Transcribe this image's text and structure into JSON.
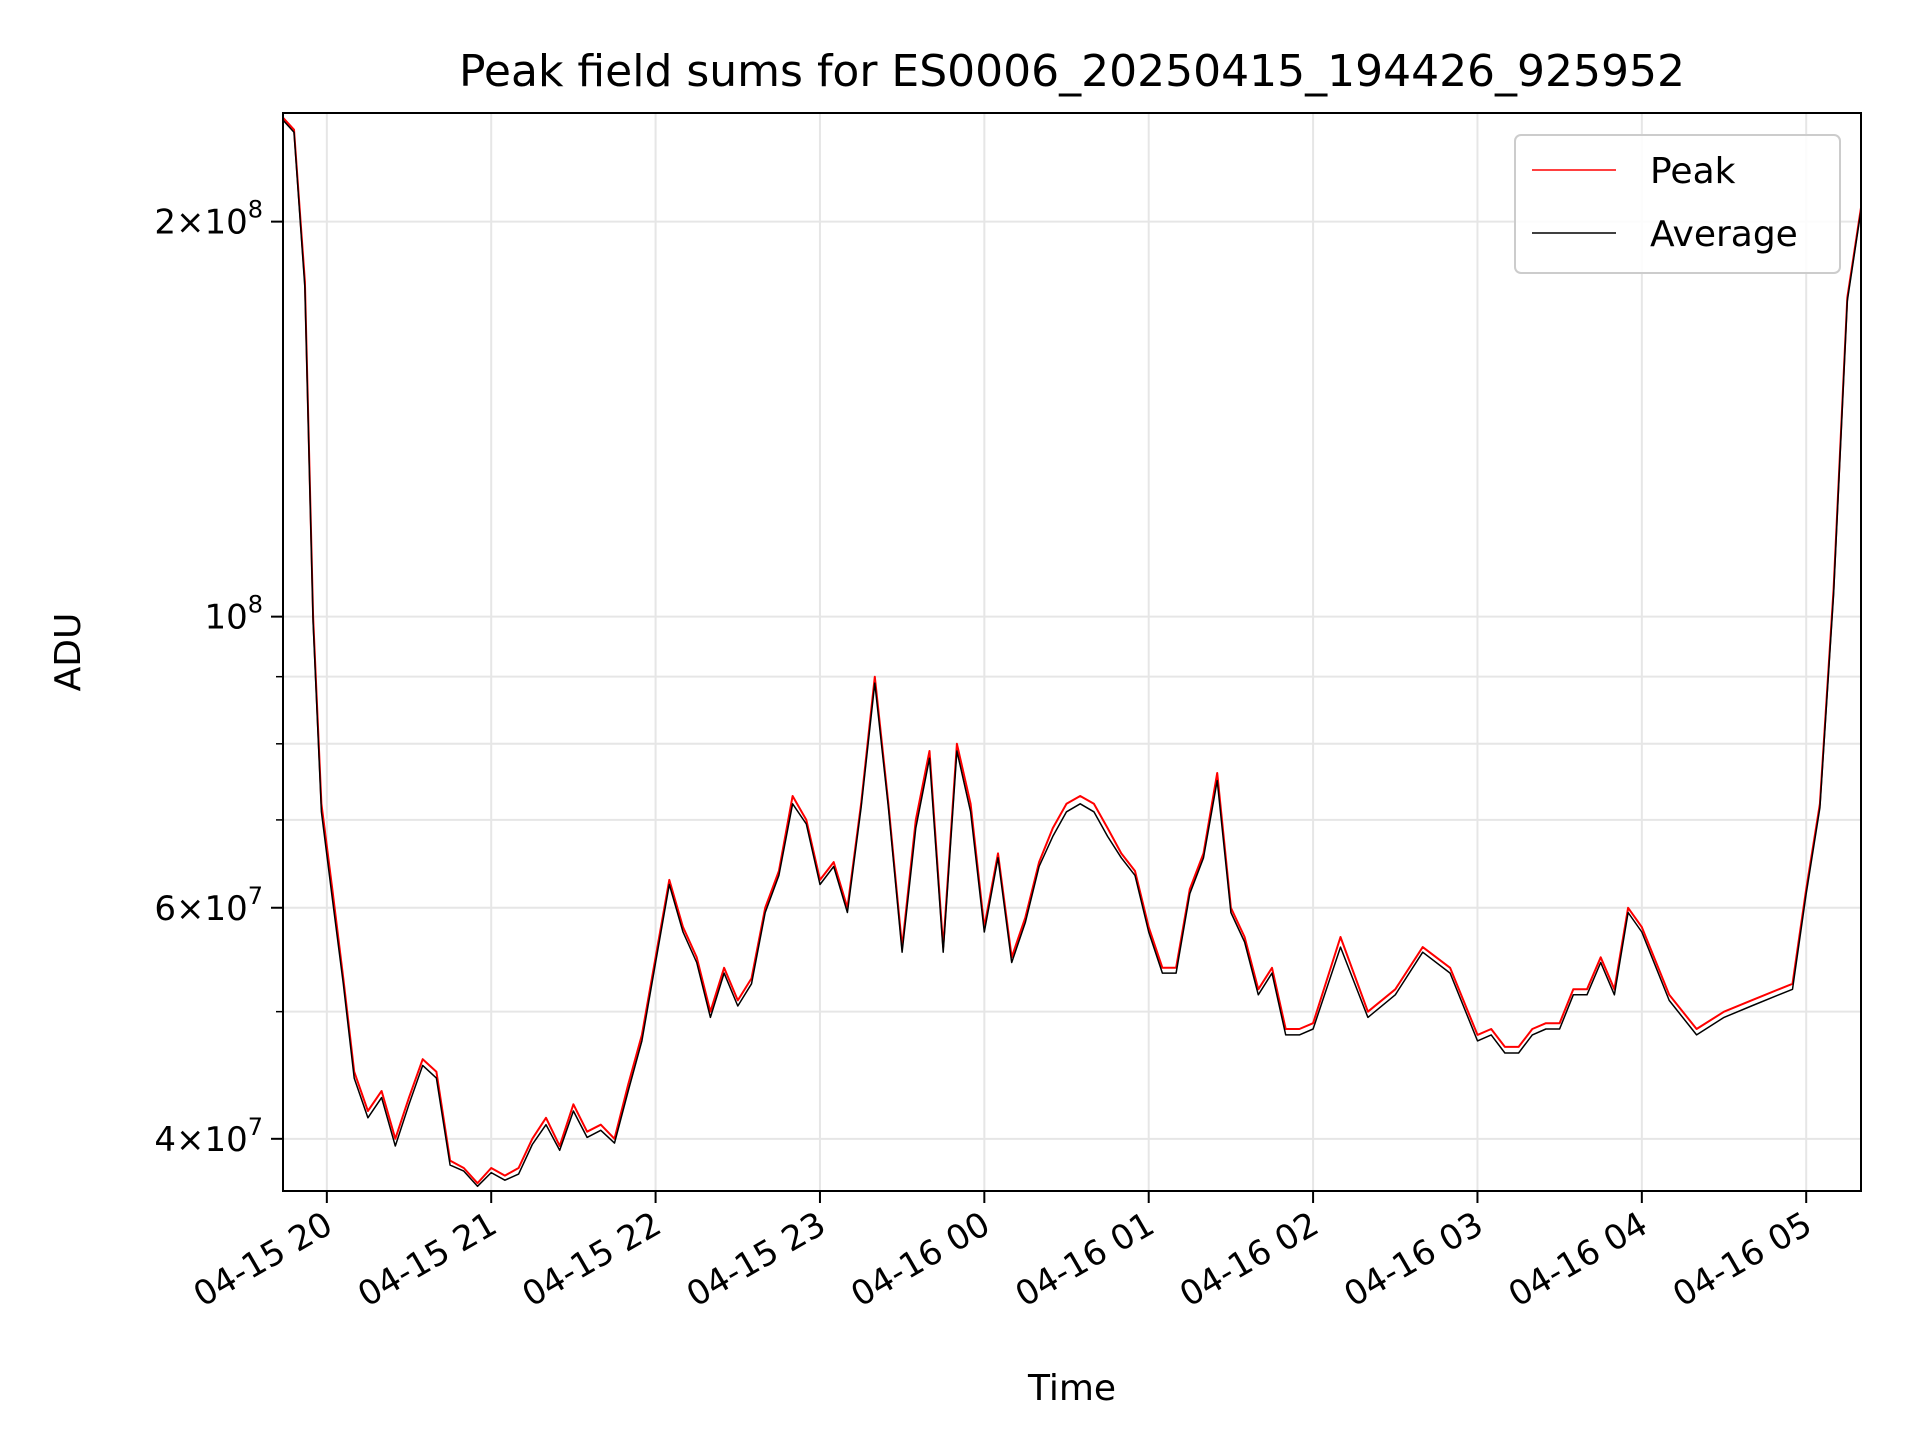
{
  "chart_data": {
    "type": "line",
    "title": "Peak field sums for ES0006_20250415_194426_925952",
    "xlabel": "Time",
    "ylabel": "ADU",
    "yscale": "log",
    "ylim": [
      36500000,
      242000000
    ],
    "xlim": [
      "04-15 19:44",
      "04-16 05:20"
    ],
    "grid": true,
    "legend_position": "upper right",
    "x_ticks": [
      "04-15 20",
      "04-15 21",
      "04-15 22",
      "04-15 23",
      "04-16 00",
      "04-16 01",
      "04-16 02",
      "04-16 03",
      "04-16 04",
      "04-16 05"
    ],
    "y_ticks": [
      {
        "value": 40000000,
        "base": "4",
        "mantissa": "10",
        "exp": "7"
      },
      {
        "value": 60000000,
        "base": "6",
        "mantissa": "10",
        "exp": "7"
      },
      {
        "value": 100000000,
        "base": "",
        "mantissa": "10",
        "exp": "8"
      },
      {
        "value": 200000000,
        "base": "2",
        "mantissa": "10",
        "exp": "8"
      }
    ],
    "series": [
      {
        "name": "Peak",
        "color": "#ff0000",
        "x": [
          "04-15 19:44",
          "04-15 19:48",
          "04-15 19:52",
          "04-15 19:55",
          "04-15 19:58",
          "04-15 20:02",
          "04-15 20:06",
          "04-15 20:10",
          "04-15 20:15",
          "04-15 20:20",
          "04-15 20:25",
          "04-15 20:30",
          "04-15 20:35",
          "04-15 20:40",
          "04-15 20:45",
          "04-15 20:50",
          "04-15 20:55",
          "04-15 21:00",
          "04-15 21:05",
          "04-15 21:10",
          "04-15 21:15",
          "04-15 21:20",
          "04-15 21:25",
          "04-15 21:30",
          "04-15 21:35",
          "04-15 21:40",
          "04-15 21:45",
          "04-15 21:50",
          "04-15 21:55",
          "04-15 22:00",
          "04-15 22:05",
          "04-15 22:10",
          "04-15 22:15",
          "04-15 22:20",
          "04-15 22:25",
          "04-15 22:30",
          "04-15 22:35",
          "04-15 22:40",
          "04-15 22:45",
          "04-15 22:50",
          "04-15 22:55",
          "04-15 23:00",
          "04-15 23:05",
          "04-15 23:10",
          "04-15 23:15",
          "04-15 23:20",
          "04-15 23:25",
          "04-15 23:30",
          "04-15 23:35",
          "04-15 23:40",
          "04-15 23:45",
          "04-15 23:50",
          "04-15 23:55",
          "04-16 00:00",
          "04-16 00:05",
          "04-16 00:10",
          "04-16 00:15",
          "04-16 00:20",
          "04-16 00:25",
          "04-16 00:30",
          "04-16 00:35",
          "04-16 00:40",
          "04-16 00:45",
          "04-16 00:50",
          "04-16 00:55",
          "04-16 01:00",
          "04-16 01:05",
          "04-16 01:10",
          "04-16 01:15",
          "04-16 01:20",
          "04-16 01:25",
          "04-16 01:30",
          "04-16 01:35",
          "04-16 01:40",
          "04-16 01:45",
          "04-16 01:50",
          "04-16 01:55",
          "04-16 02:00",
          "04-16 02:10",
          "04-16 02:20",
          "04-16 02:30",
          "04-16 02:40",
          "04-16 02:50",
          "04-16 03:00",
          "04-16 03:05",
          "04-16 03:10",
          "04-16 03:15",
          "04-16 03:20",
          "04-16 03:25",
          "04-16 03:30",
          "04-16 03:35",
          "04-16 03:40",
          "04-16 03:45",
          "04-16 03:50",
          "04-16 03:55",
          "04-16 04:00",
          "04-16 04:10",
          "04-16 04:20",
          "04-16 04:30",
          "04-16 04:40",
          "04-16 04:50",
          "04-16 04:55",
          "04-16 05:00",
          "04-16 05:05",
          "04-16 05:10",
          "04-16 05:15",
          "04-16 05:20"
        ],
        "y": [
          240000000,
          235000000,
          180000000,
          100000000,
          72000000,
          62000000,
          53000000,
          45000000,
          42000000,
          43500000,
          40000000,
          43000000,
          46000000,
          45000000,
          38500000,
          38000000,
          37000000,
          38000000,
          37500000,
          38000000,
          40000000,
          41500000,
          39500000,
          42500000,
          40500000,
          41000000,
          40000000,
          44000000,
          48000000,
          55000000,
          63000000,
          58000000,
          55000000,
          50000000,
          54000000,
          51000000,
          53000000,
          60000000,
          64000000,
          73000000,
          70000000,
          63000000,
          65000000,
          60000000,
          72000000,
          90000000,
          72000000,
          56000000,
          70000000,
          79000000,
          56000000,
          80000000,
          72000000,
          58000000,
          66000000,
          55000000,
          59000000,
          65000000,
          69000000,
          72000000,
          73000000,
          72000000,
          69000000,
          66000000,
          64000000,
          58000000,
          54000000,
          54000000,
          62000000,
          66000000,
          76000000,
          60000000,
          57000000,
          52000000,
          54000000,
          48500000,
          48500000,
          49000000,
          57000000,
          50000000,
          52000000,
          56000000,
          54000000,
          48000000,
          48500000,
          47000000,
          47000000,
          48500000,
          49000000,
          49000000,
          52000000,
          52000000,
          55000000,
          52000000,
          60000000,
          58000000,
          51500000,
          48500000,
          50000000,
          51000000,
          52000000,
          52500000,
          62000000,
          72000000,
          105000000,
          175000000,
          205000000
        ]
      },
      {
        "name": "Average",
        "color": "#000000",
        "x": [
          "04-15 19:44",
          "04-15 19:48",
          "04-15 19:52",
          "04-15 19:55",
          "04-15 19:58",
          "04-15 20:02",
          "04-15 20:06",
          "04-15 20:10",
          "04-15 20:15",
          "04-15 20:20",
          "04-15 20:25",
          "04-15 20:30",
          "04-15 20:35",
          "04-15 20:40",
          "04-15 20:45",
          "04-15 20:50",
          "04-15 20:55",
          "04-15 21:00",
          "04-15 21:05",
          "04-15 21:10",
          "04-15 21:15",
          "04-15 21:20",
          "04-15 21:25",
          "04-15 21:30",
          "04-15 21:35",
          "04-15 21:40",
          "04-15 21:45",
          "04-15 21:50",
          "04-15 21:55",
          "04-15 22:00",
          "04-15 22:05",
          "04-15 22:10",
          "04-15 22:15",
          "04-15 22:20",
          "04-15 22:25",
          "04-15 22:30",
          "04-15 22:35",
          "04-15 22:40",
          "04-15 22:45",
          "04-15 22:50",
          "04-15 22:55",
          "04-15 23:00",
          "04-15 23:05",
          "04-15 23:10",
          "04-15 23:15",
          "04-15 23:20",
          "04-15 23:25",
          "04-15 23:30",
          "04-15 23:35",
          "04-15 23:40",
          "04-15 23:45",
          "04-15 23:50",
          "04-15 23:55",
          "04-16 00:00",
          "04-16 00:05",
          "04-16 00:10",
          "04-16 00:15",
          "04-16 00:20",
          "04-16 00:25",
          "04-16 00:30",
          "04-16 00:35",
          "04-16 00:40",
          "04-16 00:45",
          "04-16 00:50",
          "04-16 00:55",
          "04-16 01:00",
          "04-16 01:05",
          "04-16 01:10",
          "04-16 01:15",
          "04-16 01:20",
          "04-16 01:25",
          "04-16 01:30",
          "04-16 01:35",
          "04-16 01:40",
          "04-16 01:45",
          "04-16 01:50",
          "04-16 01:55",
          "04-16 02:00",
          "04-16 02:10",
          "04-16 02:20",
          "04-16 02:30",
          "04-16 02:40",
          "04-16 02:50",
          "04-16 03:00",
          "04-16 03:05",
          "04-16 03:10",
          "04-16 03:15",
          "04-16 03:20",
          "04-16 03:25",
          "04-16 03:30",
          "04-16 03:35",
          "04-16 03:40",
          "04-16 03:45",
          "04-16 03:50",
          "04-16 03:55",
          "04-16 04:00",
          "04-16 04:10",
          "04-16 04:20",
          "04-16 04:30",
          "04-16 04:40",
          "04-16 04:50",
          "04-16 04:55",
          "04-16 05:00",
          "04-16 05:05",
          "04-16 05:10",
          "04-16 05:15",
          "04-16 05:20"
        ],
        "y": [
          239000000,
          234000000,
          178000000,
          99000000,
          71000000,
          61000000,
          52500000,
          44500000,
          41500000,
          43000000,
          39500000,
          42500000,
          45500000,
          44500000,
          38200000,
          37800000,
          36800000,
          37700000,
          37200000,
          37600000,
          39600000,
          41000000,
          39200000,
          42000000,
          40100000,
          40600000,
          39700000,
          43500000,
          47500000,
          54500000,
          62500000,
          57500000,
          54500000,
          49500000,
          53500000,
          50500000,
          52500000,
          59500000,
          63500000,
          72000000,
          69500000,
          62500000,
          64500000,
          59500000,
          71500000,
          89000000,
          71500000,
          55500000,
          69000000,
          78000000,
          55500000,
          79000000,
          71000000,
          57500000,
          65500000,
          54500000,
          58500000,
          64500000,
          68000000,
          71000000,
          72000000,
          71000000,
          68000000,
          65500000,
          63500000,
          57500000,
          53500000,
          53500000,
          61500000,
          65500000,
          75000000,
          59500000,
          56500000,
          51500000,
          53500000,
          48000000,
          48000000,
          48500000,
          56000000,
          49500000,
          51500000,
          55500000,
          53500000,
          47500000,
          48000000,
          46500000,
          46500000,
          48000000,
          48500000,
          48500000,
          51500000,
          51500000,
          54500000,
          51500000,
          59500000,
          57500000,
          51000000,
          48000000,
          49500000,
          50500000,
          51500000,
          52000000,
          61500000,
          71500000,
          104000000,
          174000000,
          204000000
        ]
      }
    ]
  }
}
